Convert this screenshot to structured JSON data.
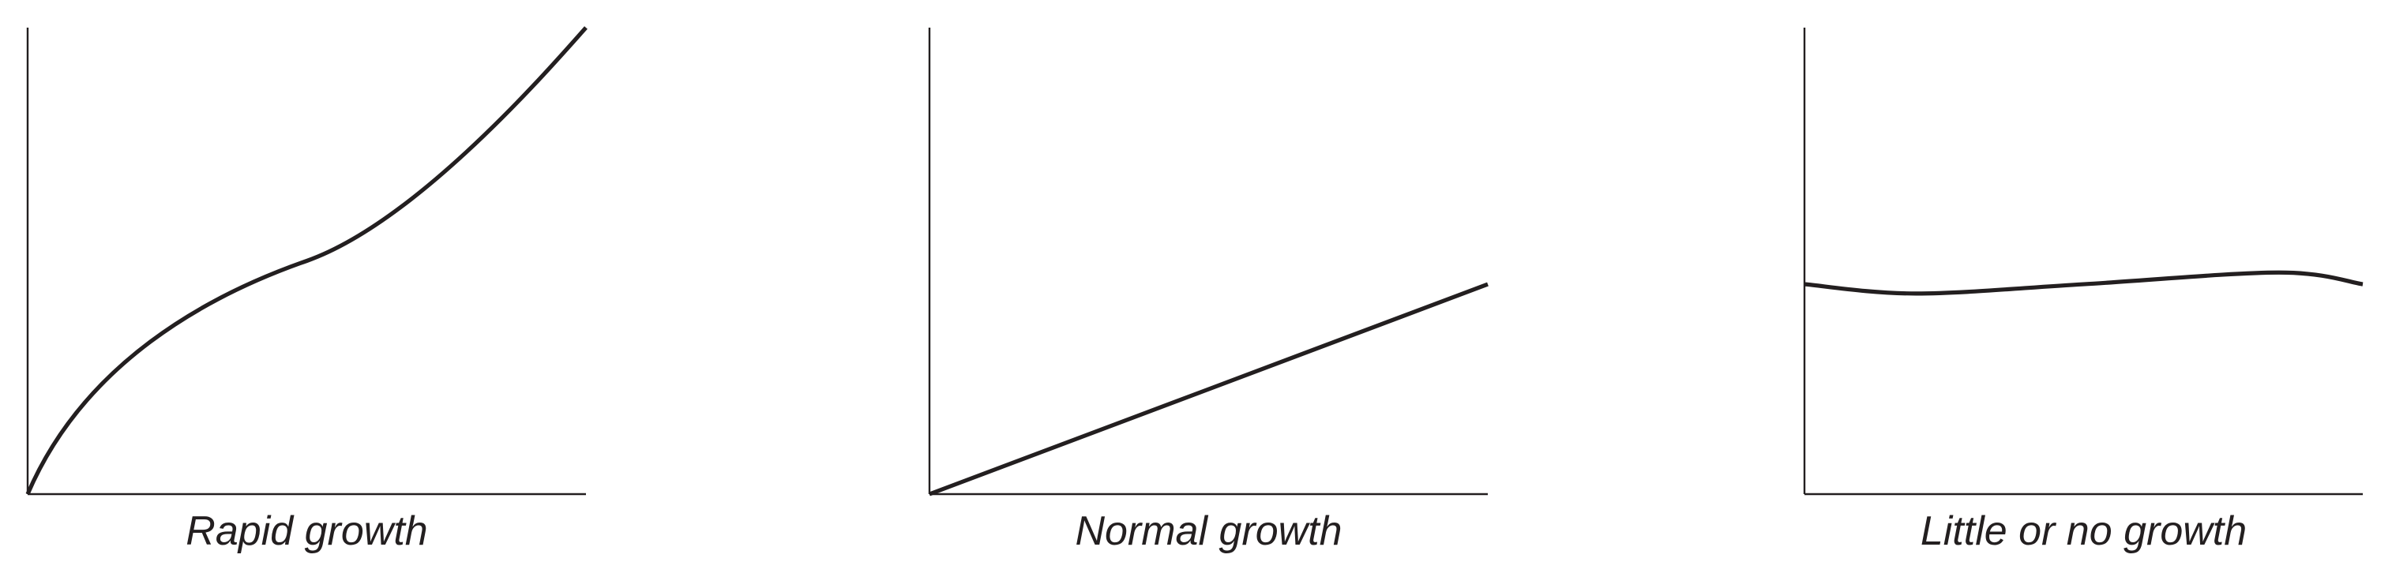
{
  "chart_data": [
    {
      "type": "line",
      "title": "Rapid growth",
      "xlabel": "",
      "ylabel": "",
      "grid": false,
      "x": [
        0,
        0.5,
        1
      ],
      "series": [
        {
          "values": [
            0,
            0.5,
            1
          ]
        }
      ],
      "xlim": [
        0,
        1
      ],
      "ylim": [
        0,
        1
      ],
      "line_color": "#231f20"
    },
    {
      "type": "line",
      "title": "Normal growth",
      "xlabel": "",
      "ylabel": "",
      "grid": false,
      "x": [
        0,
        1
      ],
      "series": [
        {
          "values": [
            0,
            0.45
          ]
        }
      ],
      "xlim": [
        0,
        1
      ],
      "ylim": [
        0,
        1
      ],
      "line_color": "#231f20"
    },
    {
      "type": "line",
      "title": "Little or no growth",
      "xlabel": "",
      "ylabel": "",
      "grid": false,
      "x": [
        0,
        0.2,
        0.5,
        0.85,
        1
      ],
      "series": [
        {
          "values": [
            0.45,
            0.43,
            0.45,
            0.475,
            0.45
          ]
        }
      ],
      "xlim": [
        0,
        1
      ],
      "ylim": [
        0,
        1
      ],
      "line_color": "#231f20"
    }
  ]
}
